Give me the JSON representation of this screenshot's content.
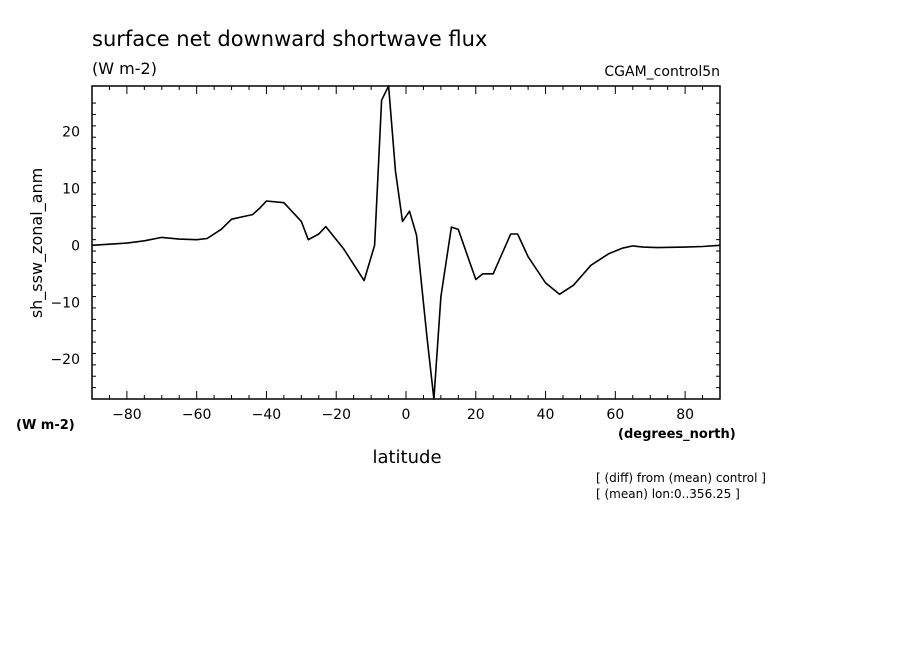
{
  "chart_data": {
    "type": "line",
    "title": "surface net downward shortwave flux",
    "title_units": "(W m-2)",
    "source_label": "CGAM_control5n",
    "ylabel": "sh_ssw_zonal_anm",
    "y_units": "(W m-2)",
    "xlabel": "latitude",
    "x_units": "(degrees_north)",
    "notes": [
      "[ (diff) from (mean) control ]",
      "[ (mean) lon:0..356.25 ]"
    ],
    "xlim": [
      -90,
      90
    ],
    "ylim": [
      -27,
      28
    ],
    "x_ticks": [
      -80,
      -60,
      -40,
      -20,
      0,
      20,
      40,
      60,
      80
    ],
    "y_ticks": [
      -20,
      -10,
      0,
      10,
      20
    ],
    "grid": false,
    "series": [
      {
        "x": [
          -90,
          -85,
          -80,
          -75,
          -70,
          -65,
          -60,
          -57,
          -53,
          -50,
          -47,
          -44,
          -42,
          -40,
          -35,
          -30,
          -28,
          -25,
          -23,
          -18,
          -12,
          -9,
          -7,
          -5,
          -3,
          -1,
          1,
          3,
          6,
          8,
          10,
          13,
          15,
          18,
          20,
          22,
          25,
          30,
          32,
          35,
          40,
          44,
          48,
          53,
          58,
          62,
          65,
          68,
          72,
          80,
          85,
          90
        ],
        "y": [
          0,
          0.2,
          0.4,
          0.8,
          1.4,
          1.1,
          1.0,
          1.2,
          2.8,
          4.6,
          5.0,
          5.4,
          6.5,
          7.8,
          7.5,
          4.2,
          1.0,
          2.0,
          3.3,
          -0.5,
          -6.2,
          0.0,
          25.5,
          28.0,
          13.0,
          4.2,
          6.0,
          1.8,
          -16.0,
          -27.0,
          -9.0,
          3.2,
          2.8,
          -2.5,
          -6.0,
          -5.0,
          -5.0,
          2.0,
          2.0,
          -2.0,
          -6.6,
          -8.6,
          -7.0,
          -3.5,
          -1.5,
          -0.5,
          -0.1,
          -0.3,
          -0.4,
          -0.3,
          -0.2,
          0.0
        ]
      }
    ]
  }
}
